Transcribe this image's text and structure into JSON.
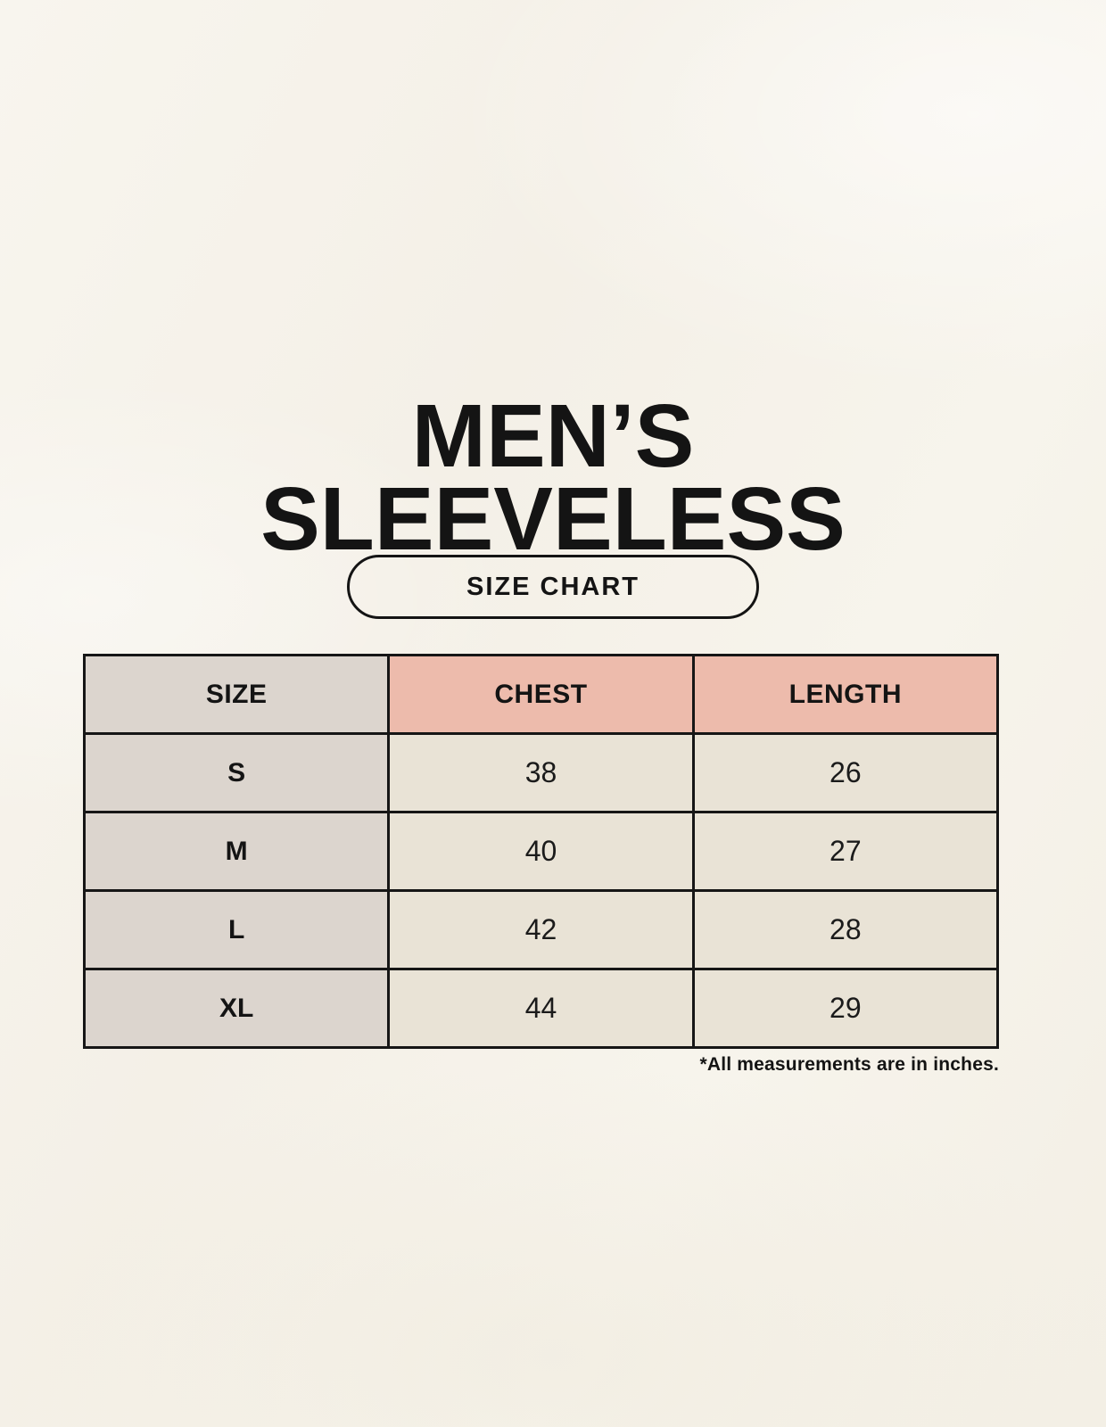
{
  "page": {
    "title_line1": "MEN’S",
    "title_line2": "SLEEVELESS",
    "badge_label": "SIZE CHART",
    "footnote": "*All measurements are in inches."
  },
  "colors": {
    "background": "#f7f4ec",
    "accent_salmon": "#edbbac",
    "taupe_gray": "#dcd5ce",
    "cell_cream": "#e9e3d6",
    "border_black": "#161616",
    "text_black": "#141414"
  },
  "chart_data": {
    "type": "table",
    "title": "MEN’S SLEEVELESS",
    "subtitle": "SIZE CHART",
    "units": "inches",
    "columns": [
      "SIZE",
      "CHEST",
      "LENGTH"
    ],
    "rows": [
      [
        "S",
        "38",
        "26"
      ],
      [
        "M",
        "40",
        "27"
      ],
      [
        "L",
        "42",
        "28"
      ],
      [
        "XL",
        "44",
        "29"
      ]
    ],
    "footnote": "*All measurements are in inches."
  }
}
